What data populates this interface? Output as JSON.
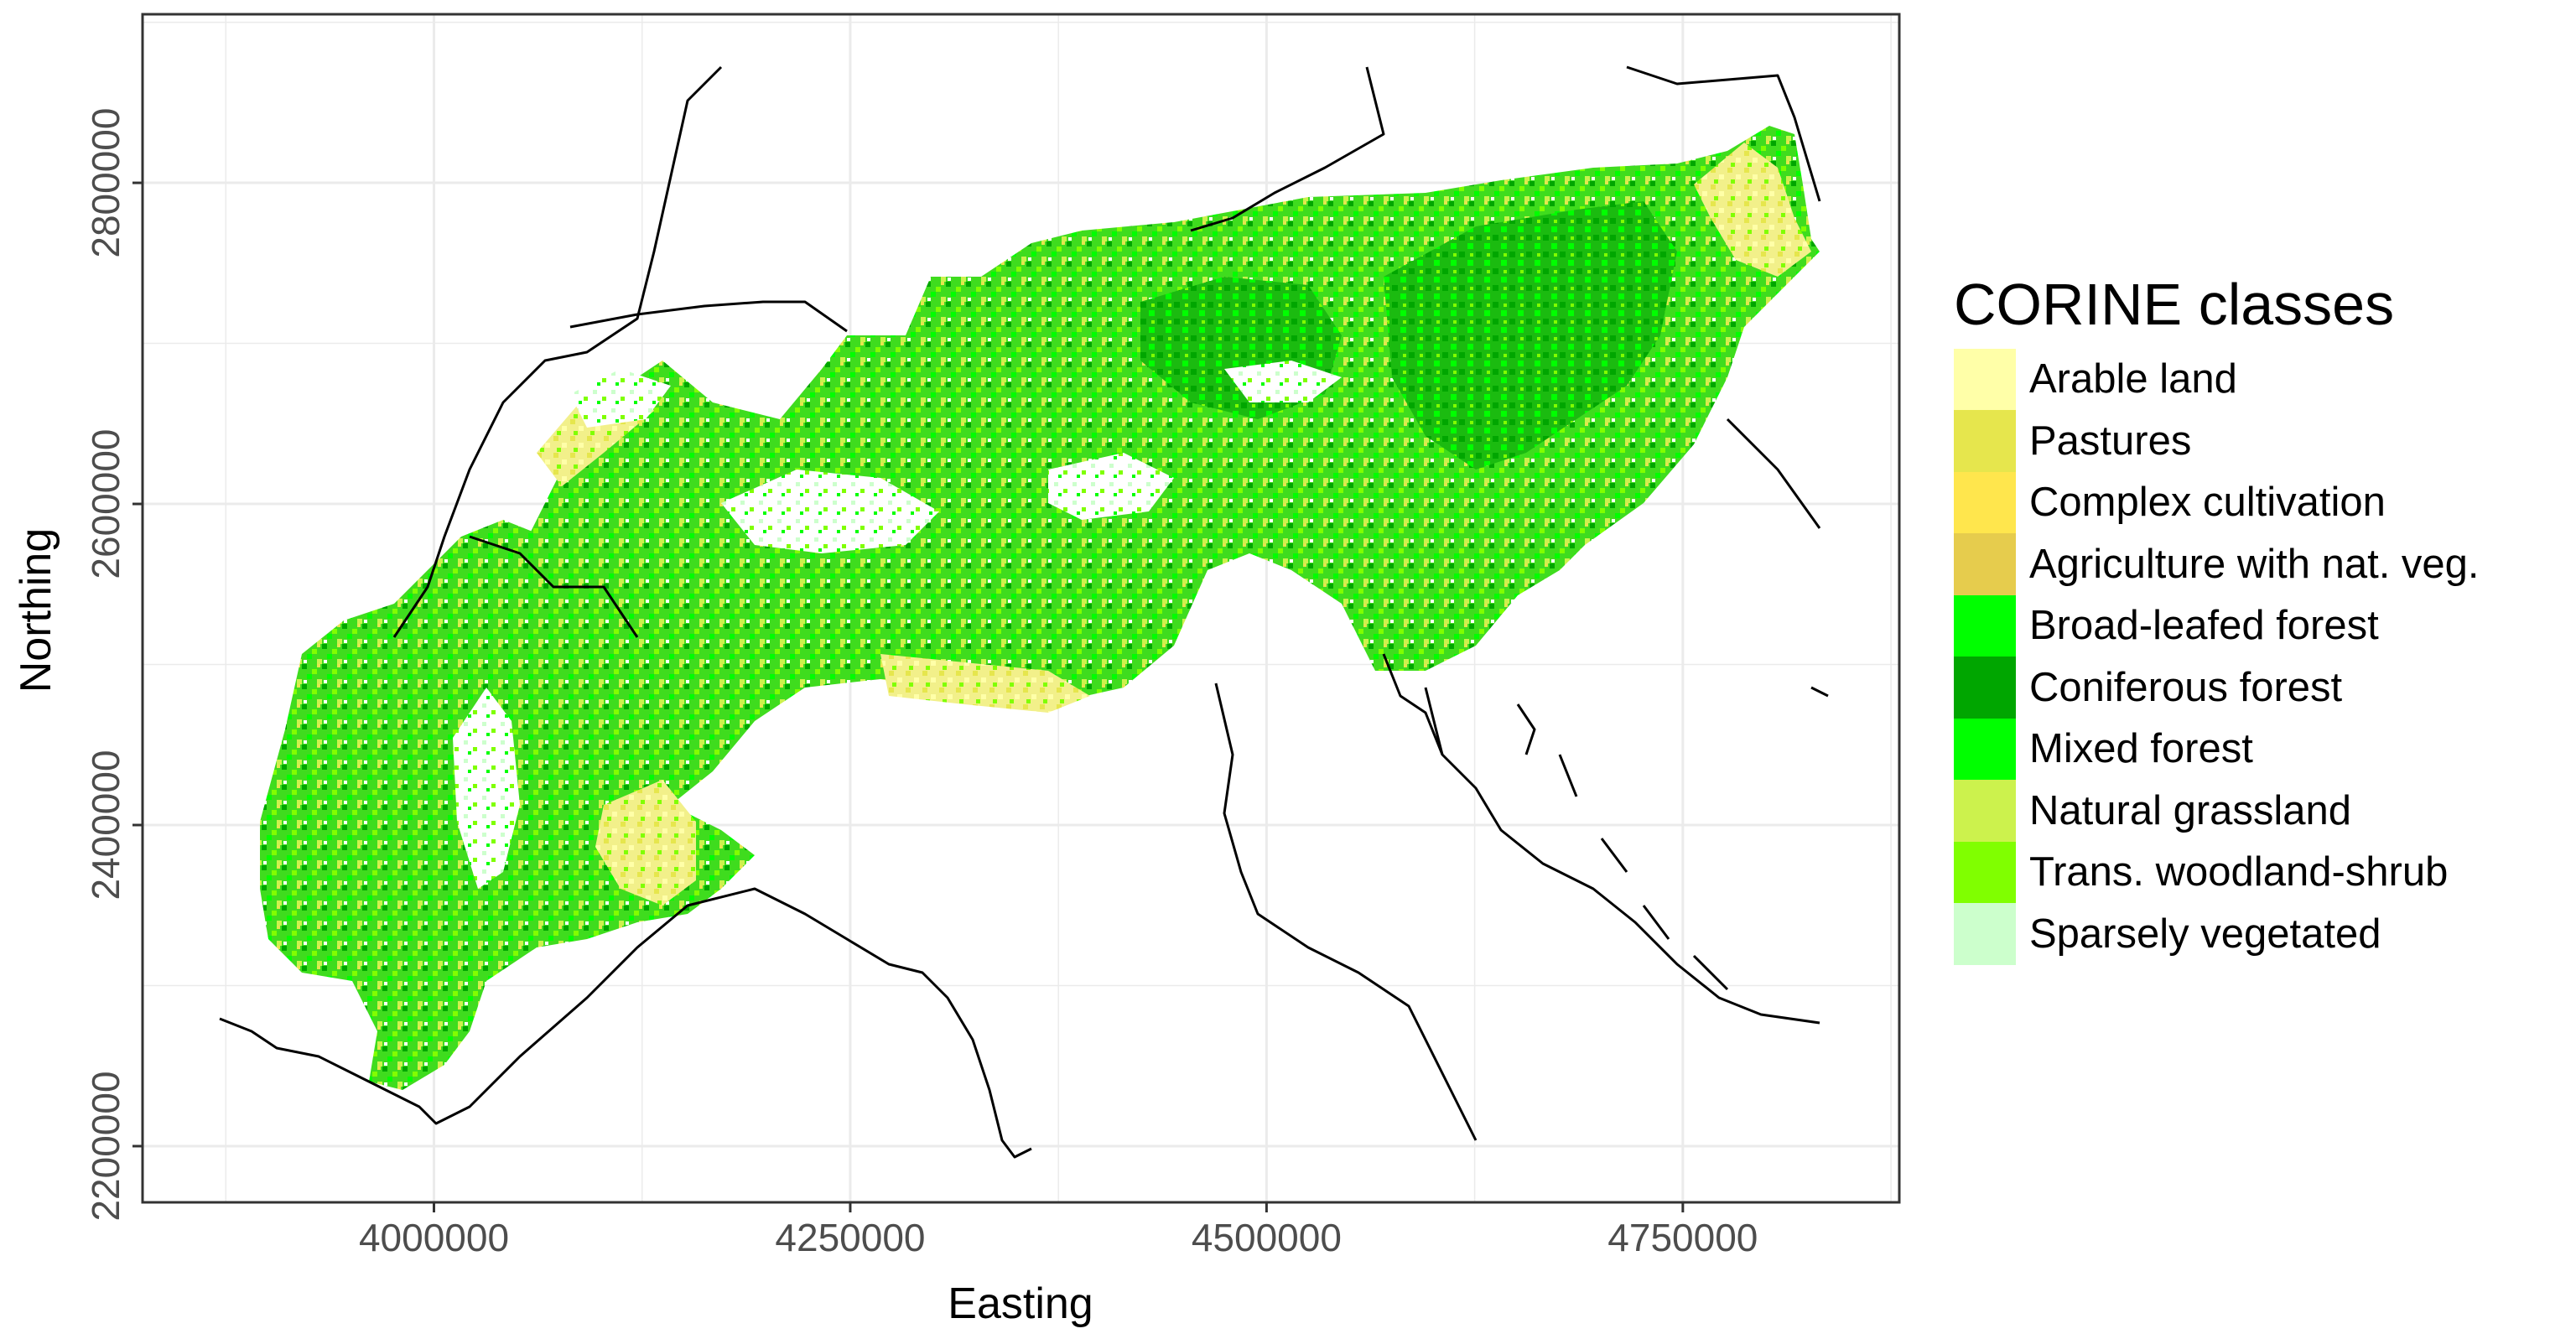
{
  "map": {
    "x_axis_label": "Easting",
    "y_axis_label": "Northing",
    "x_ticks": [
      "4000000",
      "4250000",
      "4500000",
      "4750000"
    ],
    "y_ticks": [
      "2200000",
      "2400000",
      "2600000",
      "2800000"
    ],
    "x_range": [
      3825000,
      4880000
    ],
    "y_range": [
      2165000,
      2905000
    ],
    "grid": true,
    "background": "#ffffff",
    "gridline_color": "#ebebeb",
    "border_color": "#333333"
  },
  "legend": {
    "title": "CORINE classes",
    "placement": "right",
    "items": [
      {
        "label": "Arable land",
        "color": "#ffffa8"
      },
      {
        "label": "Pastures",
        "color": "#e6e64d"
      },
      {
        "label": "Complex cultivation",
        "color": "#ffe64d"
      },
      {
        "label": "Agriculture with nat. veg.",
        "color": "#e6cc4d"
      },
      {
        "label": "Broad-leafed forest",
        "color": "#00ff00"
      },
      {
        "label": "Coniferous forest",
        "color": "#00a600"
      },
      {
        "label": "Mixed forest",
        "color": "#00ff00"
      },
      {
        "label": "Natural grassland",
        "color": "#ccf24d"
      },
      {
        "label": "Trans. woodland-shrub",
        "color": "#80ff00"
      },
      {
        "label": "Sparsely vegetated",
        "color": "#ccffcc"
      }
    ]
  }
}
